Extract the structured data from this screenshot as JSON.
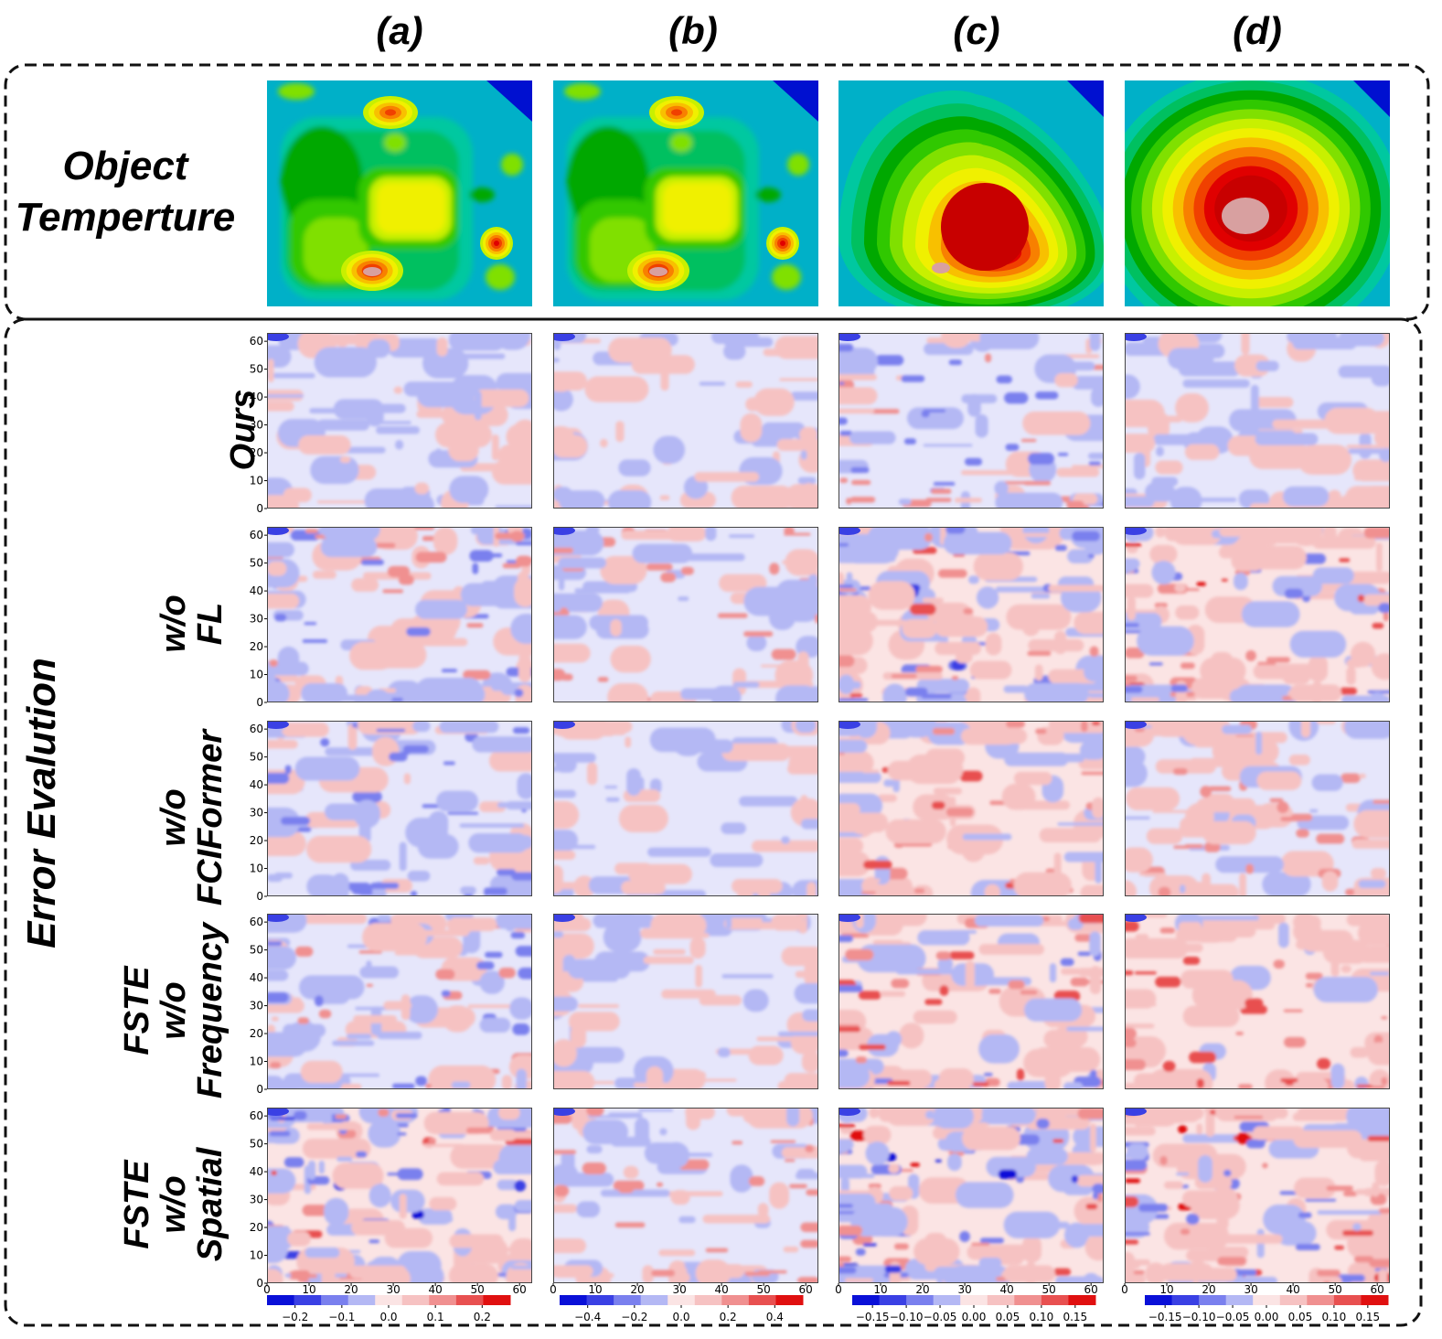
{
  "columns": [
    "(a)",
    "(b)",
    "(c)",
    "(d)"
  ],
  "top_section": {
    "label_line1": "Object",
    "label_line2": "Temperture"
  },
  "error_section": {
    "label": "Error Evalution"
  },
  "rows": [
    {
      "lines": [
        "Ours"
      ]
    },
    {
      "lines": [
        "w/o",
        "FL"
      ]
    },
    {
      "lines": [
        "w/o",
        "FCIFormer"
      ]
    },
    {
      "lines": [
        "FSTE",
        "w/o",
        "Frequency"
      ]
    },
    {
      "lines": [
        "FSTE",
        "w/o",
        "Spatial"
      ]
    }
  ],
  "axis_ticks": [
    "0",
    "10",
    "20",
    "30",
    "40",
    "50",
    "60"
  ],
  "colorbars": [
    {
      "ticks": [
        "−0.2",
        "−0.1",
        "0.0",
        "0.1",
        "0.2"
      ]
    },
    {
      "ticks": [
        "−0.4",
        "−0.2",
        "0.0",
        "0.2",
        "0.4"
      ]
    },
    {
      "ticks": [
        "−0.15",
        "−0.10",
        "−0.05",
        "0.00",
        "0.05",
        "0.10",
        "0.15"
      ]
    },
    {
      "ticks": [
        "−0.15",
        "−0.10",
        "−0.05",
        "0.00",
        "0.05",
        "0.10",
        "0.15"
      ]
    }
  ],
  "colors": {
    "temp_scale": [
      "#0010d0",
      "#0040e0",
      "#0080e8",
      "#00b0c8",
      "#00c8a0",
      "#00c060",
      "#00a800",
      "#30c800",
      "#80e000",
      "#c8f000",
      "#f0f000",
      "#f8c000",
      "#f88000",
      "#f04000",
      "#e00000",
      "#c80000",
      "#d8a0a0"
    ],
    "error_neg": [
      "#e4e6fa",
      "#b4b8f4",
      "#7a80ee",
      "#3a40e4",
      "#0a10d8"
    ],
    "error_pos": [
      "#fbe4e4",
      "#f6c2c2",
      "#f09090",
      "#e85050",
      "#e01010"
    ],
    "error_neutral": "#e6e6fb"
  }
}
